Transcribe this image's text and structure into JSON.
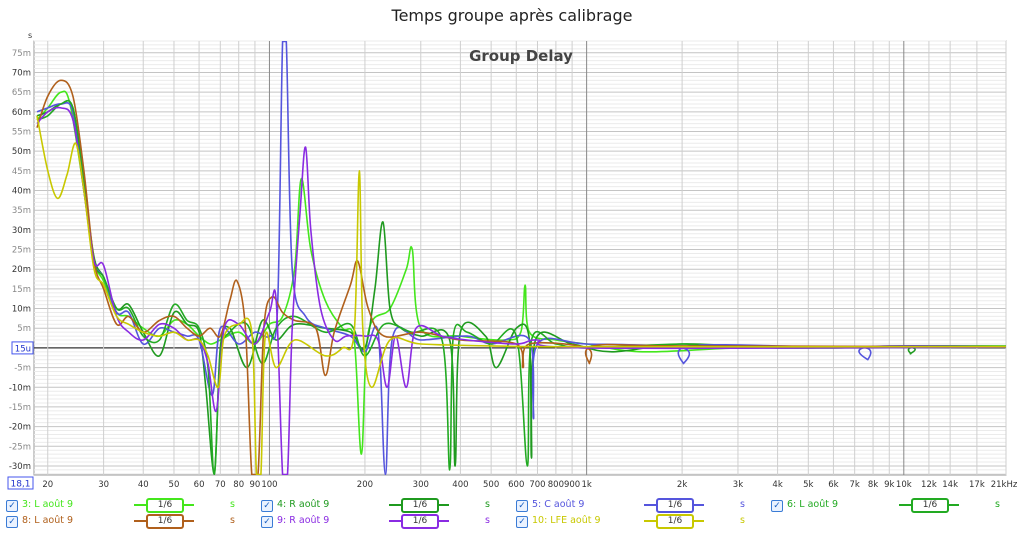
{
  "window_title": "Temps groupe après calibrage",
  "chart_data": {
    "type": "line",
    "title": "Group Delay",
    "xlabel": "Hz",
    "ylabel": "s",
    "xscale": "log",
    "xlim": [
      18.1,
      21000
    ],
    "ylim": [
      -0.0323,
      0.078
    ],
    "grid": true,
    "x_ticks": [
      "20",
      "30",
      "40",
      "50",
      "60",
      "70",
      "80",
      "90",
      "100",
      "200",
      "300",
      "400",
      "500",
      "600",
      "700",
      "800",
      "900",
      "1k",
      "2k",
      "3k",
      "4k",
      "5k",
      "6k",
      "7k",
      "8k",
      "9k",
      "10k",
      "12k",
      "14k",
      "17k",
      "21kHz"
    ],
    "x_tick_values": [
      20,
      30,
      40,
      50,
      60,
      70,
      80,
      90,
      100,
      200,
      300,
      400,
      500,
      600,
      700,
      800,
      900,
      1000,
      2000,
      3000,
      4000,
      5000,
      6000,
      7000,
      8000,
      9000,
      10000,
      12000,
      14000,
      17000,
      21000
    ],
    "x_start_label": "18,1",
    "y_ticks": [
      "75m",
      "70m",
      "65m",
      "60m",
      "55m",
      "50m",
      "45m",
      "40m",
      "35m",
      "30m",
      "25m",
      "20m",
      "15m",
      "10m",
      "5m",
      "15u",
      "-5m",
      "-10m",
      "-15m",
      "-20m",
      "-25m",
      "-30m"
    ],
    "y_tick_values_ms": [
      75,
      70,
      65,
      60,
      55,
      50,
      45,
      40,
      35,
      30,
      25,
      20,
      15,
      10,
      5,
      0,
      -5,
      -10,
      -15,
      -20,
      -25,
      -30
    ],
    "y_unit_label": "s",
    "series": [
      {
        "name": "3: L août 9",
        "color": "#44e61c",
        "smoothing": "1/6",
        "unit": "s",
        "points_ms": [
          [
            18.5,
            58
          ],
          [
            20,
            61
          ],
          [
            22,
            65
          ],
          [
            23.5,
            62
          ],
          [
            26,
            40
          ],
          [
            28,
            22
          ],
          [
            30,
            17
          ],
          [
            33,
            9
          ],
          [
            36,
            8
          ],
          [
            40,
            5
          ],
          [
            45,
            3
          ],
          [
            50,
            7
          ],
          [
            55,
            6
          ],
          [
            60,
            3
          ],
          [
            65,
            1
          ],
          [
            70,
            2
          ],
          [
            80,
            4
          ],
          [
            90,
            1
          ],
          [
            100,
            6
          ],
          [
            110,
            8
          ],
          [
            120,
            20
          ],
          [
            126,
            43
          ],
          [
            135,
            25
          ],
          [
            150,
            12
          ],
          [
            170,
            5
          ],
          [
            185,
            2
          ],
          [
            195,
            -27
          ],
          [
            205,
            4
          ],
          [
            240,
            10
          ],
          [
            270,
            20
          ],
          [
            282,
            25
          ],
          [
            300,
            5
          ],
          [
            400,
            3
          ],
          [
            550,
            2
          ],
          [
            620,
            4
          ],
          [
            640,
            16
          ],
          [
            660,
            4
          ],
          [
            800,
            2
          ],
          [
            1000,
            1
          ],
          [
            1500,
            -1
          ],
          [
            3000,
            0
          ],
          [
            6000,
            0
          ],
          [
            10000,
            0.5
          ],
          [
            21000,
            0.5
          ]
        ]
      },
      {
        "name": "4: R août 9",
        "color": "#1f9a1f",
        "smoothing": "1/6",
        "unit": "s",
        "points_ms": [
          [
            18.5,
            59
          ],
          [
            20,
            60
          ],
          [
            22,
            62
          ],
          [
            24,
            61
          ],
          [
            26,
            42
          ],
          [
            28,
            23
          ],
          [
            30,
            18
          ],
          [
            33,
            10
          ],
          [
            36,
            11
          ],
          [
            40,
            4
          ],
          [
            45,
            -2
          ],
          [
            50,
            9
          ],
          [
            55,
            6
          ],
          [
            60,
            4
          ],
          [
            63,
            -10
          ],
          [
            67,
            -32
          ],
          [
            70,
            0
          ],
          [
            75,
            5
          ],
          [
            85,
            -5
          ],
          [
            95,
            7
          ],
          [
            105,
            2
          ],
          [
            120,
            6
          ],
          [
            150,
            5
          ],
          [
            180,
            4
          ],
          [
            200,
            0
          ],
          [
            215,
            15
          ],
          [
            228,
            32
          ],
          [
            240,
            10
          ],
          [
            260,
            5
          ],
          [
            300,
            3
          ],
          [
            370,
            2
          ],
          [
            385,
            -30
          ],
          [
            400,
            4
          ],
          [
            480,
            3
          ],
          [
            520,
            -5
          ],
          [
            600,
            5
          ],
          [
            660,
            2
          ],
          [
            670,
            -28
          ],
          [
            690,
            2
          ],
          [
            900,
            1
          ],
          [
            1200,
            -1
          ],
          [
            2000,
            1
          ],
          [
            4000,
            0
          ],
          [
            10000,
            0.3
          ],
          [
            10500,
            -1.5
          ],
          [
            11000,
            0.3
          ],
          [
            21000,
            0.3
          ]
        ]
      },
      {
        "name": "5: C août 9",
        "color": "#5555dd",
        "smoothing": "1/6",
        "unit": "s",
        "points_ms": [
          [
            18.5,
            60
          ],
          [
            20,
            61
          ],
          [
            22,
            62
          ],
          [
            24,
            60
          ],
          [
            26,
            40
          ],
          [
            28,
            22
          ],
          [
            30,
            18
          ],
          [
            33,
            9
          ],
          [
            36,
            9
          ],
          [
            40,
            1
          ],
          [
            45,
            5
          ],
          [
            50,
            4
          ],
          [
            55,
            3
          ],
          [
            60,
            2
          ],
          [
            66,
            -12
          ],
          [
            70,
            5
          ],
          [
            80,
            1
          ],
          [
            90,
            4
          ],
          [
            100,
            3
          ],
          [
            106,
            10
          ],
          [
            110,
            90
          ],
          [
            113,
            90
          ],
          [
            118,
            20
          ],
          [
            130,
            8
          ],
          [
            150,
            5
          ],
          [
            180,
            3
          ],
          [
            200,
            -1
          ],
          [
            220,
            4
          ],
          [
            232,
            -33
          ],
          [
            245,
            3
          ],
          [
            300,
            2
          ],
          [
            420,
            3
          ],
          [
            500,
            1
          ],
          [
            660,
            2
          ],
          [
            680,
            -18
          ],
          [
            700,
            1
          ],
          [
            1000,
            1
          ],
          [
            2000,
            0
          ],
          [
            2020,
            -4
          ],
          [
            2100,
            0.5
          ],
          [
            5000,
            0.3
          ],
          [
            7600,
            0
          ],
          [
            7700,
            -3
          ],
          [
            7800,
            0.3
          ],
          [
            21000,
            0.3
          ]
        ]
      },
      {
        "name": "6: L août 9",
        "color": "#22aa22",
        "smoothing": "1/6",
        "unit": "s",
        "points_ms": [
          [
            18.5,
            58
          ],
          [
            20,
            59
          ],
          [
            22,
            62
          ],
          [
            24,
            61
          ],
          [
            26,
            43
          ],
          [
            28,
            22
          ],
          [
            30,
            18
          ],
          [
            33,
            10
          ],
          [
            36,
            10
          ],
          [
            40,
            3
          ],
          [
            45,
            2
          ],
          [
            50,
            11
          ],
          [
            55,
            7
          ],
          [
            60,
            5
          ],
          [
            64,
            -5
          ],
          [
            67,
            -33
          ],
          [
            70,
            -2
          ],
          [
            75,
            4
          ],
          [
            85,
            6
          ],
          [
            95,
            -4
          ],
          [
            105,
            5
          ],
          [
            120,
            8
          ],
          [
            150,
            4
          ],
          [
            180,
            6
          ],
          [
            200,
            -2
          ],
          [
            230,
            6
          ],
          [
            280,
            4
          ],
          [
            350,
            2
          ],
          [
            370,
            -31
          ],
          [
            380,
            3
          ],
          [
            420,
            4
          ],
          [
            500,
            1
          ],
          [
            600,
            3
          ],
          [
            650,
            -30
          ],
          [
            670,
            2
          ],
          [
            800,
            1
          ],
          [
            1000,
            0
          ],
          [
            2000,
            1
          ],
          [
            3000,
            0
          ],
          [
            21000,
            0.2
          ]
        ]
      },
      {
        "name": "8: L août 9",
        "color": "#b0601c",
        "smoothing": "1/6",
        "unit": "s",
        "points_ms": [
          [
            18.5,
            56
          ],
          [
            20,
            64
          ],
          [
            22,
            68
          ],
          [
            24,
            64
          ],
          [
            26,
            45
          ],
          [
            28,
            22
          ],
          [
            30,
            15
          ],
          [
            33,
            6
          ],
          [
            36,
            8
          ],
          [
            40,
            4
          ],
          [
            45,
            7
          ],
          [
            50,
            8
          ],
          [
            55,
            5
          ],
          [
            60,
            3
          ],
          [
            65,
            5
          ],
          [
            70,
            3
          ],
          [
            75,
            12
          ],
          [
            79,
            17
          ],
          [
            84,
            5
          ],
          [
            88,
            -50
          ],
          [
            92,
            -50
          ],
          [
            96,
            5
          ],
          [
            102,
            13
          ],
          [
            110,
            9
          ],
          [
            120,
            7
          ],
          [
            140,
            5
          ],
          [
            150,
            -7
          ],
          [
            160,
            4
          ],
          [
            180,
            16
          ],
          [
            190,
            22
          ],
          [
            205,
            10
          ],
          [
            230,
            3
          ],
          [
            300,
            4
          ],
          [
            400,
            2
          ],
          [
            600,
            1
          ],
          [
            630,
            -5
          ],
          [
            660,
            1
          ],
          [
            1000,
            0
          ],
          [
            1020,
            -4
          ],
          [
            1050,
            0.5
          ],
          [
            2000,
            0.5
          ],
          [
            21000,
            0.3
          ]
        ]
      },
      {
        "name": "9: R août 9",
        "color": "#8a2be2",
        "smoothing": "1/6",
        "unit": "s",
        "points_ms": [
          [
            18.5,
            57
          ],
          [
            20,
            60
          ],
          [
            22,
            61
          ],
          [
            24,
            58
          ],
          [
            26,
            40
          ],
          [
            28,
            22
          ],
          [
            30,
            21
          ],
          [
            33,
            8
          ],
          [
            36,
            4
          ],
          [
            40,
            2
          ],
          [
            45,
            6
          ],
          [
            50,
            5
          ],
          [
            55,
            2
          ],
          [
            60,
            2
          ],
          [
            64,
            -4
          ],
          [
            68,
            -16
          ],
          [
            72,
            5
          ],
          [
            80,
            6
          ],
          [
            90,
            1
          ],
          [
            100,
            9
          ],
          [
            105,
            12
          ],
          [
            110,
            -50
          ],
          [
            114,
            -50
          ],
          [
            118,
            5
          ],
          [
            125,
            35
          ],
          [
            130,
            51
          ],
          [
            135,
            30
          ],
          [
            145,
            10
          ],
          [
            160,
            2
          ],
          [
            175,
            3
          ],
          [
            200,
            3
          ],
          [
            220,
            2
          ],
          [
            235,
            -10
          ],
          [
            250,
            3
          ],
          [
            270,
            -10
          ],
          [
            290,
            5
          ],
          [
            350,
            3
          ],
          [
            420,
            2
          ],
          [
            600,
            1
          ],
          [
            700,
            2
          ],
          [
            1000,
            0
          ],
          [
            21000,
            0.2
          ]
        ]
      },
      {
        "name": "10: LFE août 9",
        "color": "#c8c800",
        "smoothing": "1/6",
        "unit": "s",
        "points_ms": [
          [
            18.5,
            59
          ],
          [
            20,
            45
          ],
          [
            21.5,
            38
          ],
          [
            23,
            44
          ],
          [
            24.5,
            52
          ],
          [
            26,
            40
          ],
          [
            28,
            20
          ],
          [
            30,
            16
          ],
          [
            33,
            8
          ],
          [
            36,
            6
          ],
          [
            40,
            4
          ],
          [
            45,
            3
          ],
          [
            50,
            4
          ],
          [
            55,
            2
          ],
          [
            60,
            2
          ],
          [
            64,
            -2
          ],
          [
            69,
            -10
          ],
          [
            72,
            3
          ],
          [
            80,
            6
          ],
          [
            88,
            4
          ],
          [
            91,
            -60
          ],
          [
            94,
            -60
          ],
          [
            97,
            3
          ],
          [
            105,
            -5
          ],
          [
            120,
            2
          ],
          [
            150,
            -2
          ],
          [
            170,
            0
          ],
          [
            185,
            4
          ],
          [
            192,
            45
          ],
          [
            197,
            5
          ],
          [
            210,
            -10
          ],
          [
            240,
            2
          ],
          [
            300,
            1
          ],
          [
            500,
            0.5
          ],
          [
            1000,
            0.3
          ],
          [
            21000,
            0.3
          ]
        ]
      }
    ]
  },
  "legend": {
    "rows": [
      [
        0,
        1,
        2,
        3
      ],
      [
        4,
        5,
        6
      ]
    ]
  }
}
